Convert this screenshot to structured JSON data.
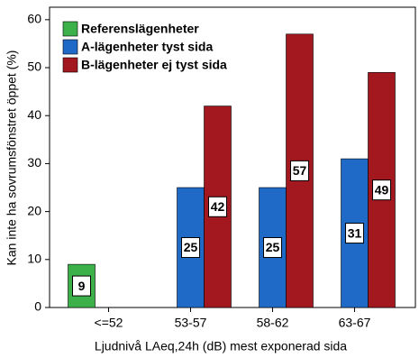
{
  "chart_data": {
    "type": "bar",
    "x_label": "Ljudnivå LAeq,24h (dB) mest exponerad sida",
    "y_label": "Kan inte ha sovrumsfönstret öppet (%)",
    "categories": [
      "<=52",
      "53-57",
      "58-62",
      "63-67"
    ],
    "series": [
      {
        "name": "Referenslägenheter",
        "color": "#3cb14a",
        "values": [
          9,
          null,
          null,
          null
        ]
      },
      {
        "name": "A-lägenheter tyst sida",
        "color": "#1f6ac6",
        "values": [
          null,
          25,
          25,
          31
        ]
      },
      {
        "name": "B-lägenheter ej tyst sida",
        "color": "#a3181f",
        "values": [
          null,
          42,
          57,
          49
        ]
      }
    ],
    "ylim": [
      0,
      62.6
    ],
    "yticks": [
      0,
      10,
      20,
      30,
      40,
      50,
      60
    ],
    "legend": "top-left",
    "grid": false
  }
}
